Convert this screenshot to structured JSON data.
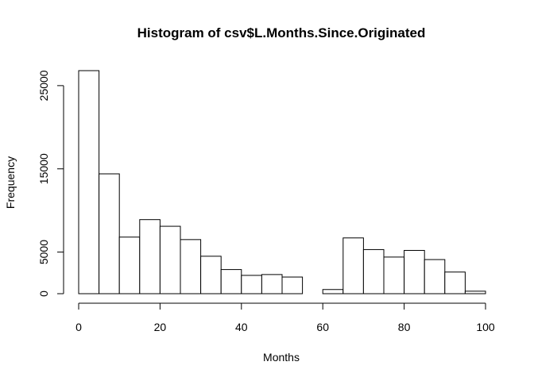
{
  "chart_data": {
    "type": "bar",
    "title": "Histogram of csv$L.Months.Since.Originated",
    "xlabel": "Months",
    "ylabel": "Frequency",
    "bin_edges": [
      0,
      5,
      10,
      15,
      20,
      25,
      30,
      35,
      40,
      45,
      50,
      55,
      60,
      65,
      70,
      75,
      80,
      85,
      90,
      95,
      100
    ],
    "values": [
      26800,
      14400,
      6800,
      8900,
      8100,
      6500,
      4500,
      2900,
      2200,
      2300,
      2000,
      0,
      500,
      6700,
      5300,
      4400,
      5200,
      4100,
      2600,
      300
    ],
    "xlim": [
      0,
      100
    ],
    "ylim": [
      0,
      26800
    ],
    "x_ticks": [
      0,
      20,
      40,
      60,
      80,
      100
    ],
    "y_ticks": [
      0,
      5000,
      15000,
      25000
    ],
    "grid": false,
    "bar_fill": "#ffffff",
    "bar_stroke": "#000000"
  }
}
